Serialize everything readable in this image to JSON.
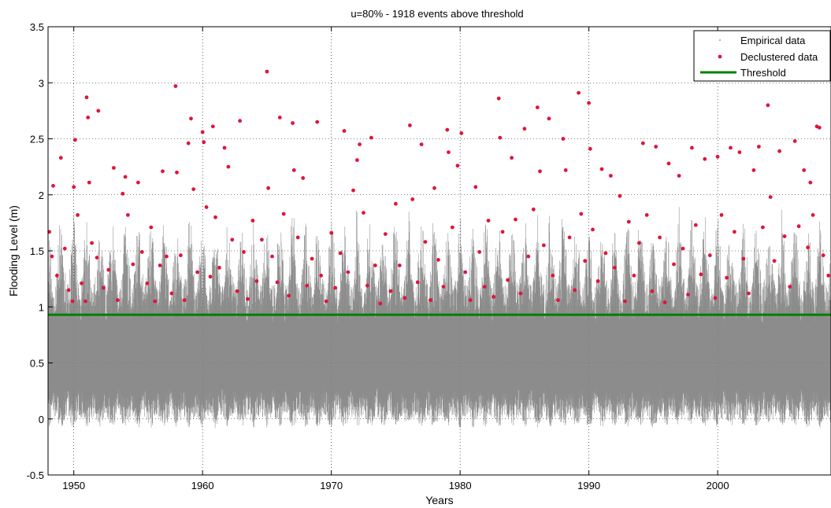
{
  "chart_data": {
    "type": "scatter",
    "title": "u=80% - 1918 events above threshold",
    "xlabel": "Years",
    "ylabel": "Flooding Level (m)",
    "xlim": [
      1948,
      2008.8
    ],
    "ylim": [
      -0.5,
      3.5
    ],
    "xticks": [
      1950,
      1960,
      1970,
      1980,
      1990,
      2000
    ],
    "yticks": [
      -0.5,
      0,
      0.5,
      1,
      1.5,
      2,
      2.5,
      3,
      3.5
    ],
    "grid": true,
    "legend_position": "top-right",
    "threshold": 0.93,
    "events_above_threshold": 1918,
    "series": [
      {
        "name": "Empirical data",
        "marker": "dot",
        "color": "#808080",
        "description_range": [
          -0.1,
          3.1
        ]
      },
      {
        "name": "Declustered data",
        "marker": "filled-circle",
        "color": "#e0143c",
        "points": [
          [
            1948.1,
            1.67
          ],
          [
            1948.3,
            1.45
          ],
          [
            1948.4,
            2.08
          ],
          [
            1948.7,
            1.28
          ],
          [
            1949.0,
            2.33
          ],
          [
            1949.3,
            1.52
          ],
          [
            1949.6,
            1.15
          ],
          [
            1949.9,
            1.05
          ],
          [
            1950.0,
            2.07
          ],
          [
            1950.1,
            2.49
          ],
          [
            1950.3,
            1.82
          ],
          [
            1950.6,
            1.21
          ],
          [
            1950.9,
            1.05
          ],
          [
            1951.0,
            2.87
          ],
          [
            1951.1,
            2.69
          ],
          [
            1951.2,
            2.11
          ],
          [
            1951.4,
            1.57
          ],
          [
            1951.8,
            1.44
          ],
          [
            1951.9,
            2.75
          ],
          [
            1952.3,
            1.17
          ],
          [
            1952.7,
            1.33
          ],
          [
            1953.1,
            2.24
          ],
          [
            1953.4,
            1.06
          ],
          [
            1953.8,
            2.01
          ],
          [
            1954.0,
            2.16
          ],
          [
            1954.2,
            1.82
          ],
          [
            1954.6,
            1.38
          ],
          [
            1955.0,
            2.11
          ],
          [
            1955.3,
            1.49
          ],
          [
            1955.7,
            1.21
          ],
          [
            1956.0,
            1.71
          ],
          [
            1956.3,
            1.05
          ],
          [
            1956.7,
            1.37
          ],
          [
            1956.9,
            2.21
          ],
          [
            1957.2,
            1.45
          ],
          [
            1957.6,
            1.12
          ],
          [
            1957.9,
            2.97
          ],
          [
            1958.0,
            2.2
          ],
          [
            1958.3,
            1.46
          ],
          [
            1958.6,
            1.06
          ],
          [
            1958.9,
            2.46
          ],
          [
            1959.1,
            2.68
          ],
          [
            1959.3,
            2.05
          ],
          [
            1959.6,
            1.31
          ],
          [
            1960.0,
            2.56
          ],
          [
            1960.1,
            2.47
          ],
          [
            1960.3,
            1.89
          ],
          [
            1960.6,
            1.27
          ],
          [
            1960.8,
            2.61
          ],
          [
            1961.0,
            1.8
          ],
          [
            1961.3,
            1.35
          ],
          [
            1961.7,
            2.42
          ],
          [
            1962.0,
            2.25
          ],
          [
            1962.3,
            1.6
          ],
          [
            1962.7,
            1.14
          ],
          [
            1962.9,
            2.66
          ],
          [
            1963.2,
            1.49
          ],
          [
            1963.5,
            1.07
          ],
          [
            1963.9,
            1.77
          ],
          [
            1964.2,
            1.23
          ],
          [
            1964.6,
            1.6
          ],
          [
            1965.0,
            3.1
          ],
          [
            1965.1,
            2.06
          ],
          [
            1965.4,
            1.45
          ],
          [
            1965.8,
            1.22
          ],
          [
            1966.0,
            2.69
          ],
          [
            1966.3,
            1.83
          ],
          [
            1966.7,
            1.1
          ],
          [
            1967.0,
            2.64
          ],
          [
            1967.1,
            2.22
          ],
          [
            1967.4,
            1.62
          ],
          [
            1967.8,
            2.15
          ],
          [
            1968.1,
            1.19
          ],
          [
            1968.5,
            1.43
          ],
          [
            1968.9,
            2.65
          ],
          [
            1969.2,
            1.28
          ],
          [
            1969.6,
            1.05
          ],
          [
            1970.0,
            1.66
          ],
          [
            1970.3,
            1.17
          ],
          [
            1970.7,
            1.48
          ],
          [
            1971.0,
            2.57
          ],
          [
            1971.3,
            1.31
          ],
          [
            1971.7,
            2.04
          ],
          [
            1972.0,
            2.31
          ],
          [
            1972.2,
            2.45
          ],
          [
            1972.5,
            1.84
          ],
          [
            1972.8,
            1.19
          ],
          [
            1973.1,
            2.51
          ],
          [
            1973.4,
            1.37
          ],
          [
            1973.8,
            1.03
          ],
          [
            1974.2,
            1.65
          ],
          [
            1974.6,
            1.14
          ],
          [
            1975.0,
            1.92
          ],
          [
            1975.3,
            1.37
          ],
          [
            1975.7,
            1.08
          ],
          [
            1976.1,
            2.62
          ],
          [
            1976.3,
            1.96
          ],
          [
            1976.7,
            1.22
          ],
          [
            1977.0,
            2.45
          ],
          [
            1977.3,
            1.58
          ],
          [
            1977.7,
            1.06
          ],
          [
            1978.0,
            2.06
          ],
          [
            1978.3,
            1.42
          ],
          [
            1978.7,
            1.18
          ],
          [
            1979.0,
            2.58
          ],
          [
            1979.1,
            2.38
          ],
          [
            1979.4,
            1.71
          ],
          [
            1979.8,
            2.26
          ],
          [
            1980.1,
            2.55
          ],
          [
            1980.4,
            1.31
          ],
          [
            1980.8,
            1.06
          ],
          [
            1981.2,
            2.07
          ],
          [
            1981.5,
            1.49
          ],
          [
            1981.9,
            1.18
          ],
          [
            1982.2,
            1.77
          ],
          [
            1982.6,
            1.09
          ],
          [
            1983.0,
            2.86
          ],
          [
            1983.1,
            2.51
          ],
          [
            1983.3,
            1.67
          ],
          [
            1983.7,
            1.24
          ],
          [
            1984.0,
            2.33
          ],
          [
            1984.3,
            1.78
          ],
          [
            1984.7,
            1.12
          ],
          [
            1985.0,
            2.59
          ],
          [
            1985.3,
            1.45
          ],
          [
            1985.7,
            1.87
          ],
          [
            1986.0,
            2.78
          ],
          [
            1986.2,
            2.21
          ],
          [
            1986.5,
            1.55
          ],
          [
            1986.9,
            2.68
          ],
          [
            1987.2,
            1.28
          ],
          [
            1987.6,
            1.06
          ],
          [
            1988.0,
            2.5
          ],
          [
            1988.2,
            2.22
          ],
          [
            1988.5,
            1.62
          ],
          [
            1988.9,
            1.15
          ],
          [
            1989.2,
            2.91
          ],
          [
            1989.4,
            1.83
          ],
          [
            1989.7,
            1.41
          ],
          [
            1990.0,
            2.82
          ],
          [
            1990.1,
            2.41
          ],
          [
            1990.3,
            1.69
          ],
          [
            1990.7,
            1.23
          ],
          [
            1991.0,
            2.23
          ],
          [
            1991.3,
            1.48
          ],
          [
            1991.7,
            2.17
          ],
          [
            1992.0,
            1.35
          ],
          [
            1992.4,
            1.99
          ],
          [
            1992.8,
            1.05
          ],
          [
            1993.1,
            1.76
          ],
          [
            1993.5,
            1.28
          ],
          [
            1993.9,
            1.57
          ],
          [
            1994.2,
            2.46
          ],
          [
            1994.5,
            1.82
          ],
          [
            1994.9,
            1.14
          ],
          [
            1995.2,
            2.43
          ],
          [
            1995.5,
            1.62
          ],
          [
            1995.9,
            1.04
          ],
          [
            1996.2,
            2.28
          ],
          [
            1996.6,
            1.38
          ],
          [
            1997.0,
            2.17
          ],
          [
            1997.3,
            1.52
          ],
          [
            1997.7,
            1.11
          ],
          [
            1998.0,
            2.42
          ],
          [
            1998.3,
            1.73
          ],
          [
            1998.7,
            1.29
          ],
          [
            1999.0,
            2.32
          ],
          [
            1999.4,
            1.46
          ],
          [
            1999.8,
            1.08
          ],
          [
            2000.0,
            2.34
          ],
          [
            2000.3,
            1.82
          ],
          [
            2000.7,
            1.26
          ],
          [
            2001.0,
            2.42
          ],
          [
            2001.3,
            1.67
          ],
          [
            2001.7,
            2.38
          ],
          [
            2002.0,
            1.43
          ],
          [
            2002.4,
            1.12
          ],
          [
            2002.8,
            2.22
          ],
          [
            2003.2,
            2.43
          ],
          [
            2003.5,
            1.71
          ],
          [
            2003.9,
            2.8
          ],
          [
            2004.1,
            1.98
          ],
          [
            2004.4,
            1.41
          ],
          [
            2004.8,
            2.39
          ],
          [
            2005.2,
            1.63
          ],
          [
            2005.6,
            1.18
          ],
          [
            2006.0,
            2.48
          ],
          [
            2006.3,
            1.72
          ],
          [
            2006.7,
            2.22
          ],
          [
            2007.0,
            1.53
          ],
          [
            2007.2,
            2.11
          ],
          [
            2007.4,
            1.82
          ],
          [
            2007.7,
            2.61
          ],
          [
            2007.9,
            2.6
          ],
          [
            2008.2,
            1.46
          ],
          [
            2008.6,
            1.28
          ]
        ]
      },
      {
        "name": "Threshold",
        "marker": "line",
        "color": "#008000",
        "y": 0.93
      }
    ]
  }
}
